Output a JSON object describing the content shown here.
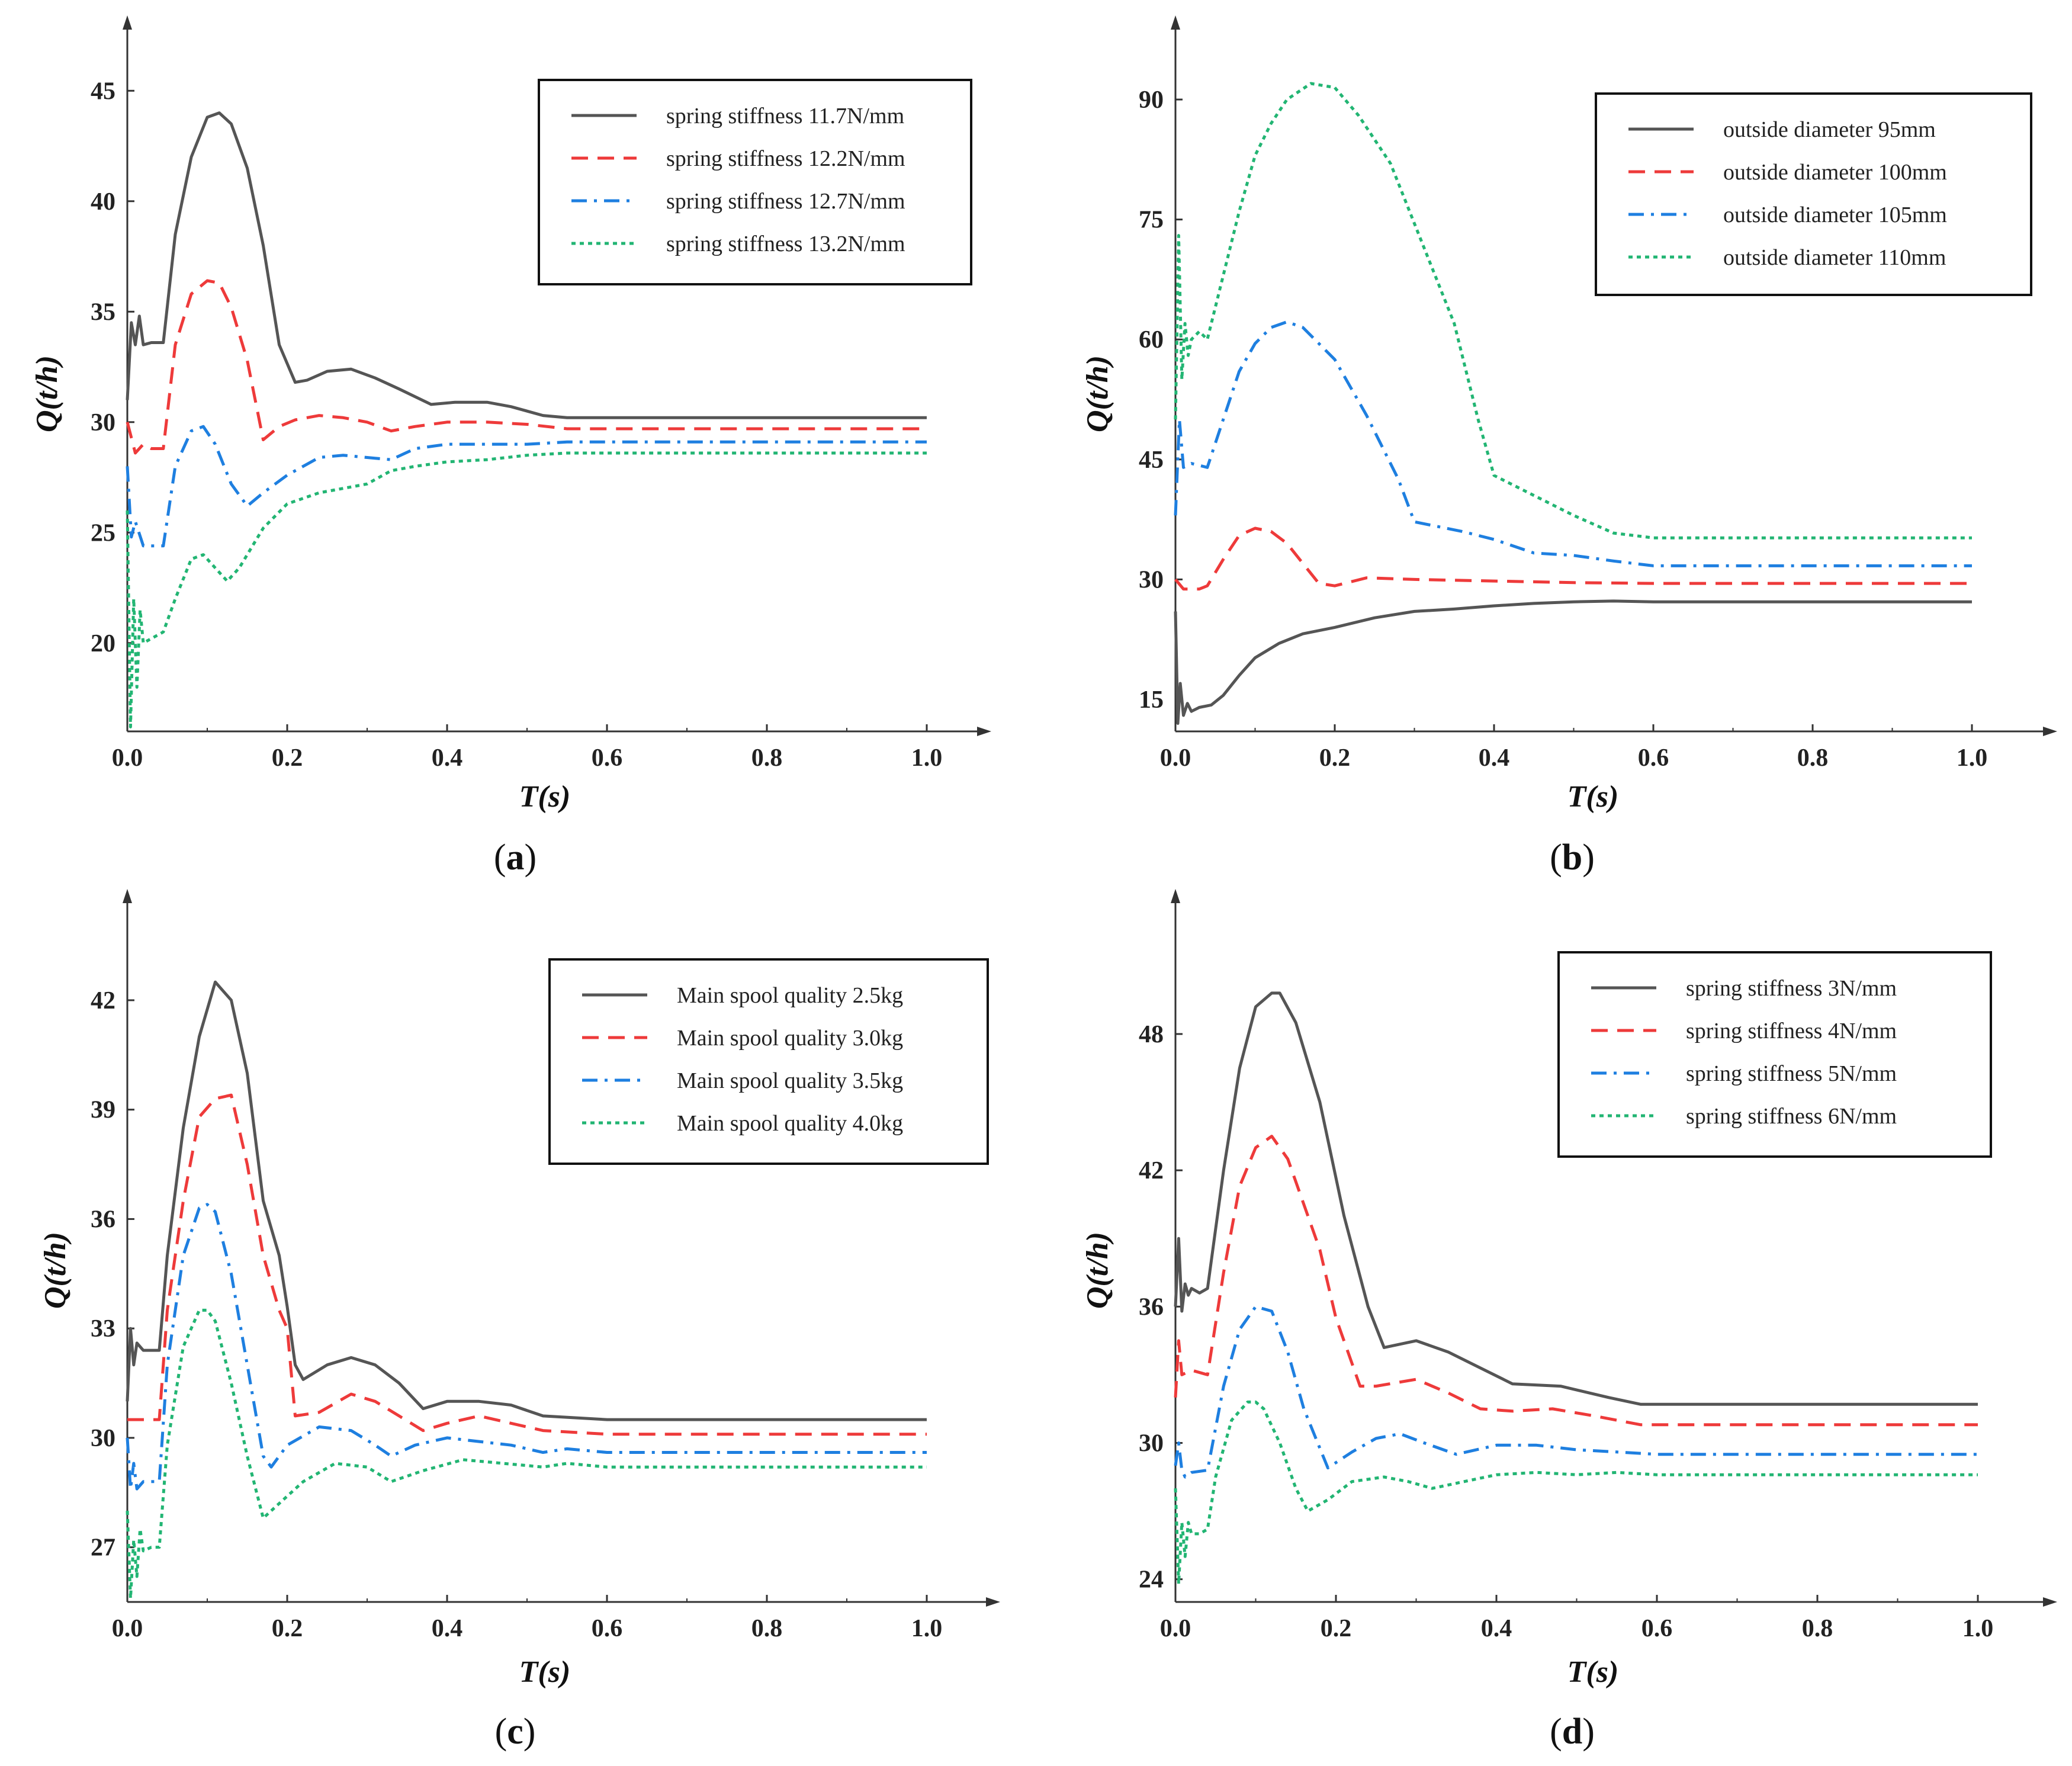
{
  "chart_data": [
    {
      "type": "line",
      "panel_label": "a",
      "xlabel": "T(s)",
      "ylabel": "Q(t/h)",
      "xlim": [
        0,
        1.0
      ],
      "ylim": [
        16,
        47.5
      ],
      "xticks": [
        0.0,
        0.2,
        0.4,
        0.6,
        0.8,
        1.0
      ],
      "xtick_labels": [
        "0.0",
        "0.2",
        "0.4",
        "0.6",
        "0.8",
        "1.0"
      ],
      "yticks": [
        20,
        25,
        30,
        35,
        40,
        45
      ],
      "ytick_labels": [
        "20",
        "25",
        "30",
        "35",
        "40",
        "45"
      ],
      "legend_position": "top-right",
      "series": [
        {
          "name": "spring stiffness 11.7N/mm",
          "color": "#555555",
          "dash": "solid",
          "x": [
            0,
            0.005,
            0.01,
            0.015,
            0.02,
            0.03,
            0.045,
            0.06,
            0.08,
            0.1,
            0.115,
            0.13,
            0.15,
            0.17,
            0.19,
            0.21,
            0.225,
            0.25,
            0.28,
            0.31,
            0.34,
            0.38,
            0.41,
            0.45,
            0.48,
            0.52,
            0.55,
            1.0
          ],
          "y": [
            31,
            34.5,
            33.5,
            34.8,
            33.5,
            33.6,
            33.6,
            38.5,
            42,
            43.8,
            44,
            43.5,
            41.5,
            38,
            33.5,
            31.8,
            31.9,
            32.3,
            32.4,
            32,
            31.5,
            30.8,
            30.9,
            30.9,
            30.7,
            30.3,
            30.2,
            30.2
          ]
        },
        {
          "name": "spring stiffness 12.2N/mm",
          "color": "#ee3a3a",
          "dash": "dash",
          "x": [
            0,
            0.01,
            0.02,
            0.03,
            0.045,
            0.06,
            0.08,
            0.1,
            0.115,
            0.13,
            0.15,
            0.17,
            0.19,
            0.21,
            0.24,
            0.27,
            0.3,
            0.33,
            0.36,
            0.4,
            0.45,
            0.5,
            0.55,
            0.6,
            1.0
          ],
          "y": [
            30,
            28.6,
            29,
            28.8,
            28.8,
            33.5,
            35.8,
            36.4,
            36.3,
            35.2,
            32.8,
            29.2,
            29.8,
            30.1,
            30.3,
            30.2,
            30,
            29.6,
            29.8,
            30,
            30,
            29.9,
            29.7,
            29.7,
            29.7
          ]
        },
        {
          "name": "spring stiffness 12.7N/mm",
          "color": "#1e7fe0",
          "dash": "dashdot",
          "x": [
            0,
            0.005,
            0.01,
            0.02,
            0.03,
            0.045,
            0.06,
            0.08,
            0.095,
            0.11,
            0.13,
            0.15,
            0.17,
            0.2,
            0.24,
            0.27,
            0.3,
            0.33,
            0.36,
            0.4,
            0.45,
            0.5,
            0.55,
            1.0
          ],
          "y": [
            28,
            24.8,
            25.5,
            24.4,
            24.4,
            24.4,
            28,
            29.6,
            29.8,
            29,
            27.2,
            26.2,
            26.8,
            27.6,
            28.4,
            28.5,
            28.4,
            28.3,
            28.8,
            29,
            29,
            29,
            29.1,
            29.1
          ]
        },
        {
          "name": "spring stiffness 13.2N/mm",
          "color": "#22b573",
          "dash": "dot",
          "x": [
            0,
            0.004,
            0.008,
            0.012,
            0.016,
            0.02,
            0.03,
            0.045,
            0.06,
            0.08,
            0.095,
            0.11,
            0.125,
            0.14,
            0.17,
            0.2,
            0.24,
            0.27,
            0.3,
            0.33,
            0.36,
            0.4,
            0.45,
            0.5,
            0.55,
            1.0
          ],
          "y": [
            26,
            16.2,
            22,
            18,
            21.5,
            20,
            20.2,
            20.5,
            22,
            23.8,
            24,
            23.4,
            22.8,
            23.4,
            25.2,
            26.3,
            26.8,
            27,
            27.2,
            27.8,
            28,
            28.2,
            28.3,
            28.5,
            28.6,
            28.6
          ]
        }
      ]
    },
    {
      "type": "line",
      "panel_label": "b",
      "xlabel": "T(s)",
      "ylabel": "Q(t/h)",
      "xlim": [
        0,
        1.0
      ],
      "ylim": [
        11,
        98
      ],
      "xticks": [
        0.0,
        0.2,
        0.4,
        0.6,
        0.8,
        1.0
      ],
      "xtick_labels": [
        "0.0",
        "0.2",
        "0.4",
        "0.6",
        "0.8",
        "1.0"
      ],
      "yticks": [
        15,
        30,
        45,
        60,
        75,
        90
      ],
      "ytick_labels": [
        "15",
        "30",
        "45",
        "60",
        "75",
        "90"
      ],
      "legend_position": "top-right",
      "series": [
        {
          "name": "outside diameter 95mm",
          "color": "#555555",
          "dash": "solid",
          "x": [
            0,
            0.003,
            0.006,
            0.01,
            0.015,
            0.02,
            0.03,
            0.045,
            0.06,
            0.08,
            0.1,
            0.13,
            0.16,
            0.2,
            0.25,
            0.3,
            0.35,
            0.4,
            0.45,
            0.5,
            0.55,
            0.6,
            1.0
          ],
          "y": [
            26,
            12,
            17,
            13,
            14.5,
            13.5,
            14,
            14.3,
            15.5,
            18,
            20.2,
            22,
            23.2,
            24,
            25.2,
            26,
            26.3,
            26.7,
            27,
            27.2,
            27.3,
            27.2,
            27.2
          ]
        },
        {
          "name": "outside diameter 100mm",
          "color": "#ee3a3a",
          "dash": "dash",
          "x": [
            0,
            0.01,
            0.03,
            0.04,
            0.06,
            0.08,
            0.1,
            0.12,
            0.14,
            0.16,
            0.18,
            0.2,
            0.24,
            0.3,
            0.4,
            0.5,
            0.6,
            1.0
          ],
          "y": [
            30,
            28.8,
            28.8,
            29.2,
            32.5,
            35.5,
            36.4,
            36,
            34.5,
            32,
            29.5,
            29.2,
            30.2,
            30,
            29.8,
            29.6,
            29.5,
            29.5
          ]
        },
        {
          "name": "outside diameter 105mm",
          "color": "#1e7fe0",
          "dash": "dashdot",
          "x": [
            0,
            0.005,
            0.01,
            0.02,
            0.04,
            0.06,
            0.08,
            0.1,
            0.12,
            0.14,
            0.16,
            0.2,
            0.24,
            0.28,
            0.3,
            0.32,
            0.36,
            0.4,
            0.45,
            0.5,
            0.55,
            0.6,
            1.0
          ],
          "y": [
            38,
            50,
            44,
            44.5,
            44,
            50,
            56,
            59.5,
            61.5,
            62.2,
            61.5,
            57.5,
            50.5,
            42.5,
            37.2,
            36.8,
            36,
            35,
            33.3,
            33,
            32.3,
            31.7,
            31.7
          ]
        },
        {
          "name": "outside diameter 110mm",
          "color": "#22b573",
          "dash": "dot",
          "x": [
            0,
            0.004,
            0.008,
            0.012,
            0.016,
            0.02,
            0.03,
            0.04,
            0.06,
            0.08,
            0.1,
            0.12,
            0.14,
            0.17,
            0.2,
            0.23,
            0.27,
            0.31,
            0.35,
            0.38,
            0.4,
            0.45,
            0.5,
            0.55,
            0.6,
            1.0
          ],
          "y": [
            50,
            73,
            55,
            62,
            58,
            60,
            61,
            60,
            68,
            76,
            83,
            87,
            90,
            92,
            91.5,
            88,
            82,
            72,
            62,
            50,
            43,
            40.5,
            38,
            35.8,
            35.2,
            35.2
          ]
        }
      ]
    },
    {
      "type": "line",
      "panel_label": "c",
      "xlabel": "T(s)",
      "ylabel": "Q(t/h)",
      "xlim": [
        0,
        1.0
      ],
      "ylim": [
        25.5,
        44.5
      ],
      "xticks": [
        0.0,
        0.2,
        0.4,
        0.6,
        0.8,
        1.0
      ],
      "xtick_labels": [
        "0.0",
        "0.2",
        "0.4",
        "0.6",
        "0.8",
        "1.0"
      ],
      "yticks": [
        27,
        30,
        33,
        36,
        39,
        42
      ],
      "ytick_labels": [
        "27",
        "30",
        "33",
        "36",
        "39",
        "42"
      ],
      "legend_position": "top-right",
      "series": [
        {
          "name": "Main spool quality 2.5kg",
          "color": "#555555",
          "dash": "solid",
          "x": [
            0,
            0.004,
            0.008,
            0.012,
            0.02,
            0.04,
            0.05,
            0.07,
            0.09,
            0.11,
            0.13,
            0.15,
            0.17,
            0.19,
            0.2,
            0.21,
            0.22,
            0.25,
            0.28,
            0.31,
            0.34,
            0.37,
            0.4,
            0.44,
            0.48,
            0.52,
            0.6,
            1.0
          ],
          "y": [
            31,
            33,
            32,
            32.6,
            32.4,
            32.4,
            35,
            38.5,
            41,
            42.5,
            42,
            40,
            36.5,
            35,
            33.6,
            32,
            31.6,
            32,
            32.2,
            32,
            31.5,
            30.8,
            31,
            31,
            30.9,
            30.6,
            30.5,
            30.5
          ]
        },
        {
          "name": "Main spool quality 3.0kg",
          "color": "#ee3a3a",
          "dash": "dash",
          "x": [
            0,
            0.01,
            0.04,
            0.05,
            0.07,
            0.09,
            0.11,
            0.13,
            0.15,
            0.17,
            0.19,
            0.2,
            0.21,
            0.24,
            0.28,
            0.31,
            0.34,
            0.37,
            0.4,
            0.44,
            0.48,
            0.52,
            0.6,
            1.0
          ],
          "y": [
            30.5,
            30.5,
            30.5,
            33.5,
            36.5,
            38.8,
            39.3,
            39.4,
            37.5,
            35,
            33.5,
            33,
            30.6,
            30.7,
            31.2,
            31,
            30.6,
            30.2,
            30.4,
            30.6,
            30.4,
            30.2,
            30.1,
            30.1
          ]
        },
        {
          "name": "Main spool quality 3.5kg",
          "color": "#1e7fe0",
          "dash": "dashdot",
          "x": [
            0,
            0.004,
            0.008,
            0.012,
            0.02,
            0.04,
            0.05,
            0.07,
            0.09,
            0.1,
            0.11,
            0.13,
            0.15,
            0.17,
            0.18,
            0.2,
            0.24,
            0.28,
            0.31,
            0.33,
            0.36,
            0.4,
            0.44,
            0.48,
            0.52,
            0.55,
            0.6,
            1.0
          ],
          "y": [
            30,
            28.6,
            29.3,
            28.6,
            28.8,
            28.8,
            32,
            35,
            36.3,
            36.4,
            36.2,
            34.5,
            32,
            29.5,
            29.2,
            29.8,
            30.3,
            30.2,
            29.8,
            29.5,
            29.8,
            30,
            29.9,
            29.8,
            29.6,
            29.7,
            29.6,
            29.6
          ]
        },
        {
          "name": "Main spool quality 4.0kg",
          "color": "#22b573",
          "dash": "dot",
          "x": [
            0,
            0.004,
            0.008,
            0.012,
            0.016,
            0.02,
            0.03,
            0.04,
            0.05,
            0.07,
            0.09,
            0.1,
            0.11,
            0.13,
            0.15,
            0.17,
            0.19,
            0.22,
            0.26,
            0.3,
            0.33,
            0.37,
            0.42,
            0.47,
            0.52,
            0.55,
            0.6,
            1.0
          ],
          "y": [
            28,
            25.6,
            27.2,
            26.2,
            27.5,
            26.9,
            27,
            27,
            29.8,
            32.5,
            33.5,
            33.5,
            33.2,
            31.5,
            29.5,
            27.8,
            28.2,
            28.8,
            29.3,
            29.2,
            28.8,
            29.1,
            29.4,
            29.3,
            29.2,
            29.3,
            29.2,
            29.2
          ]
        }
      ]
    },
    {
      "type": "line",
      "panel_label": "d",
      "xlabel": "T(s)",
      "ylabel": "Q(t/h)",
      "xlim": [
        0,
        1.0
      ],
      "ylim": [
        23,
        53.5
      ],
      "xticks": [
        0.0,
        0.2,
        0.4,
        0.6,
        0.8,
        1.0
      ],
      "xtick_labels": [
        "0.0",
        "0.2",
        "0.4",
        "0.6",
        "0.8",
        "1.0"
      ],
      "yticks": [
        24,
        30,
        36,
        42,
        48
      ],
      "ytick_labels": [
        "24",
        "30",
        "36",
        "42",
        "48"
      ],
      "legend_position": "top-right",
      "series": [
        {
          "name": "spring stiffness 3N/mm",
          "color": "#555555",
          "dash": "solid",
          "x": [
            0,
            0.004,
            0.008,
            0.012,
            0.016,
            0.02,
            0.03,
            0.04,
            0.06,
            0.08,
            0.1,
            0.12,
            0.13,
            0.15,
            0.18,
            0.21,
            0.24,
            0.26,
            0.3,
            0.34,
            0.38,
            0.42,
            0.48,
            0.54,
            0.58,
            0.6,
            1.0
          ],
          "y": [
            36,
            39,
            35.8,
            37,
            36.5,
            36.8,
            36.6,
            36.8,
            42,
            46.5,
            49.2,
            49.8,
            49.8,
            48.5,
            45,
            40,
            36,
            34.2,
            34.5,
            34,
            33.3,
            32.6,
            32.5,
            32,
            31.7,
            31.7,
            31.7
          ]
        },
        {
          "name": "spring stiffness 4N/mm",
          "color": "#ee3a3a",
          "dash": "dash",
          "x": [
            0,
            0.004,
            0.008,
            0.02,
            0.04,
            0.06,
            0.08,
            0.1,
            0.12,
            0.14,
            0.16,
            0.18,
            0.2,
            0.23,
            0.25,
            0.3,
            0.34,
            0.38,
            0.42,
            0.47,
            0.52,
            0.58,
            0.6,
            1.0
          ],
          "y": [
            32,
            34.5,
            33,
            33.2,
            33,
            37.5,
            41.3,
            43,
            43.5,
            42.5,
            40.5,
            38.5,
            35.5,
            32.5,
            32.5,
            32.8,
            32.2,
            31.5,
            31.4,
            31.5,
            31.2,
            30.8,
            30.8,
            30.8
          ]
        },
        {
          "name": "spring stiffness 5N/mm",
          "color": "#1e7fe0",
          "dash": "dashdot",
          "x": [
            0,
            0.004,
            0.008,
            0.012,
            0.02,
            0.04,
            0.06,
            0.08,
            0.1,
            0.12,
            0.14,
            0.16,
            0.19,
            0.22,
            0.25,
            0.28,
            0.31,
            0.35,
            0.4,
            0.45,
            0.5,
            0.55,
            0.6,
            1.0
          ],
          "y": [
            29,
            30,
            28.8,
            28.5,
            28.7,
            28.8,
            32.5,
            35,
            36,
            35.8,
            34,
            31.5,
            28.9,
            29.6,
            30.2,
            30.4,
            30,
            29.5,
            29.9,
            29.9,
            29.7,
            29.6,
            29.5,
            29.5
          ]
        },
        {
          "name": "spring stiffness 6N/mm",
          "color": "#22b573",
          "dash": "dot",
          "x": [
            0,
            0.004,
            0.008,
            0.012,
            0.016,
            0.02,
            0.03,
            0.04,
            0.05,
            0.07,
            0.09,
            0.1,
            0.11,
            0.13,
            0.15,
            0.165,
            0.19,
            0.22,
            0.26,
            0.29,
            0.32,
            0.36,
            0.4,
            0.45,
            0.5,
            0.55,
            0.6,
            1.0
          ],
          "y": [
            28,
            23.8,
            26.5,
            25,
            26.5,
            26,
            26,
            26.2,
            28.5,
            31,
            31.8,
            31.8,
            31.5,
            30,
            28,
            27,
            27.5,
            28.3,
            28.5,
            28.3,
            28,
            28.3,
            28.6,
            28.7,
            28.6,
            28.7,
            28.6,
            28.6
          ]
        }
      ]
    }
  ]
}
